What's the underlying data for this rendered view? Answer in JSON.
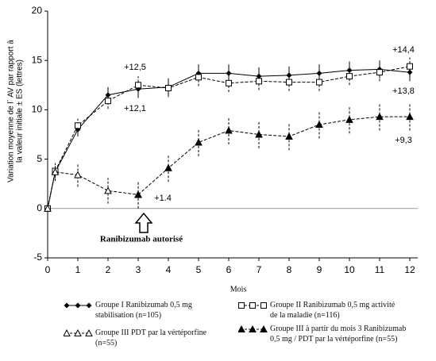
{
  "chart_data": {
    "type": "line",
    "y_label": [
      "Variation moyenne de l´ AV par rapport à",
      "la valeur initiale ± ES (lettres)"
    ],
    "x_label": "Mois",
    "xlim": [
      0,
      12
    ],
    "xticks": [
      0,
      1,
      2,
      3,
      4,
      5,
      6,
      7,
      8,
      9,
      10,
      11,
      12
    ],
    "ylim": [
      -5,
      20
    ],
    "yticks": [
      -5,
      0,
      5,
      10,
      15,
      20
    ],
    "series": [
      {
        "name": "Groupe I Ranibizumab 0,5 mg stabilisation (n=105)",
        "color": "#000000",
        "marker": "diamond",
        "dashed": false,
        "x": [
          0,
          0.25,
          1,
          2,
          3,
          4,
          5,
          6,
          7,
          8,
          9,
          10,
          11,
          12
        ],
        "values": [
          0,
          3.7,
          8.0,
          11.5,
          12.1,
          12.3,
          13.7,
          13.7,
          13.4,
          13.5,
          13.7,
          14.0,
          14.1,
          13.8
        ],
        "errors": [
          0,
          0.6,
          0.7,
          0.8,
          0.9,
          0.9,
          0.9,
          0.9,
          0.9,
          0.9,
          0.9,
          0.9,
          0.9,
          0.9
        ]
      },
      {
        "name": "Groupe II Ranibizumab 0,5 mg activité de la maladie (n=116)",
        "color": "#000000",
        "marker": "square",
        "dashed": true,
        "x": [
          0,
          0.25,
          1,
          2,
          3,
          4,
          5,
          6,
          7,
          8,
          9,
          10,
          11,
          12
        ],
        "values": [
          0,
          3.8,
          8.4,
          10.9,
          12.5,
          12.2,
          13.3,
          12.7,
          12.9,
          12.8,
          12.8,
          13.4,
          13.8,
          14.4
        ],
        "errors": [
          0,
          0.6,
          0.7,
          0.8,
          0.9,
          0.9,
          0.9,
          0.9,
          0.9,
          0.9,
          0.9,
          0.9,
          0.9,
          0.9
        ]
      },
      {
        "name": "Groupe III PDT par la vértéporfine (n=55)",
        "color": "#000000",
        "marker": "triangle-open",
        "dashed": true,
        "x": [
          0,
          0.25,
          1,
          2,
          3
        ],
        "values": [
          0,
          3.7,
          3.4,
          1.8,
          1.4
        ],
        "errors": [
          0,
          0.9,
          1.2,
          1.3,
          1.4
        ]
      },
      {
        "name": "Groupe III à partir du mois 3 Ranibizumab 0,5 mg / PDT par la vértéporfine (n=55)",
        "color": "#000000",
        "marker": "triangle",
        "dashed": true,
        "x": [
          3,
          4,
          5,
          6,
          7,
          8,
          9,
          10,
          11,
          12
        ],
        "values": [
          1.4,
          4.1,
          6.7,
          7.9,
          7.5,
          7.3,
          8.5,
          9.0,
          9.3,
          9.3
        ],
        "errors": [
          1.4,
          1.4,
          1.4,
          1.4,
          1.4,
          1.4,
          1.4,
          1.4,
          1.4,
          1.4
        ]
      }
    ],
    "annotations": [
      "+12,5",
      "+12,1",
      "+1.4",
      "+14,4",
      "+13,8",
      "+9,3",
      "Ranibizumab autorisé"
    ]
  }
}
